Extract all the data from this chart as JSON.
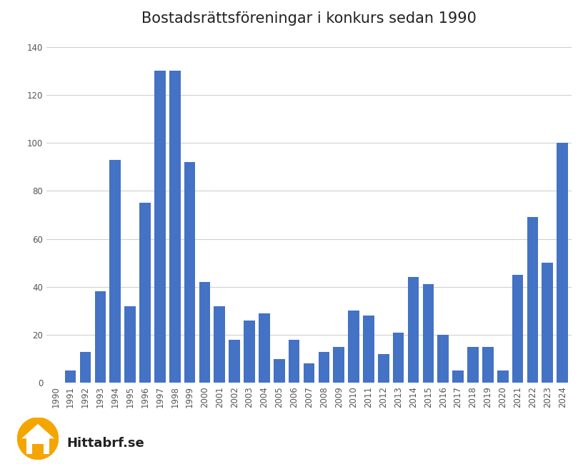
{
  "title": "Bostadsrättsföreningar i konkurs sedan 1990",
  "years": [
    1990,
    1991,
    1992,
    1993,
    1994,
    1995,
    1996,
    1997,
    1998,
    1999,
    2000,
    2001,
    2002,
    2003,
    2004,
    2005,
    2006,
    2007,
    2008,
    2009,
    2010,
    2011,
    2012,
    2013,
    2014,
    2015,
    2016,
    2017,
    2018,
    2019,
    2020,
    2021,
    2022,
    2023,
    2024
  ],
  "values": [
    0,
    5,
    13,
    38,
    93,
    32,
    75,
    130,
    130,
    92,
    42,
    32,
    18,
    26,
    29,
    10,
    18,
    8,
    13,
    15,
    30,
    28,
    12,
    21,
    44,
    41,
    20,
    5,
    15,
    15,
    5,
    45,
    69,
    50,
    100
  ],
  "bar_color": "#4472C4",
  "background_color": "#ffffff",
  "ylim": [
    0,
    145
  ],
  "yticks": [
    0,
    20,
    40,
    60,
    80,
    100,
    120,
    140
  ],
  "grid_color": "#d0d0d0",
  "title_fontsize": 15,
  "tick_fontsize": 8.5,
  "watermark_text": "Hittabrf.se",
  "watermark_color": "#222222",
  "logo_color": "#F5A500"
}
